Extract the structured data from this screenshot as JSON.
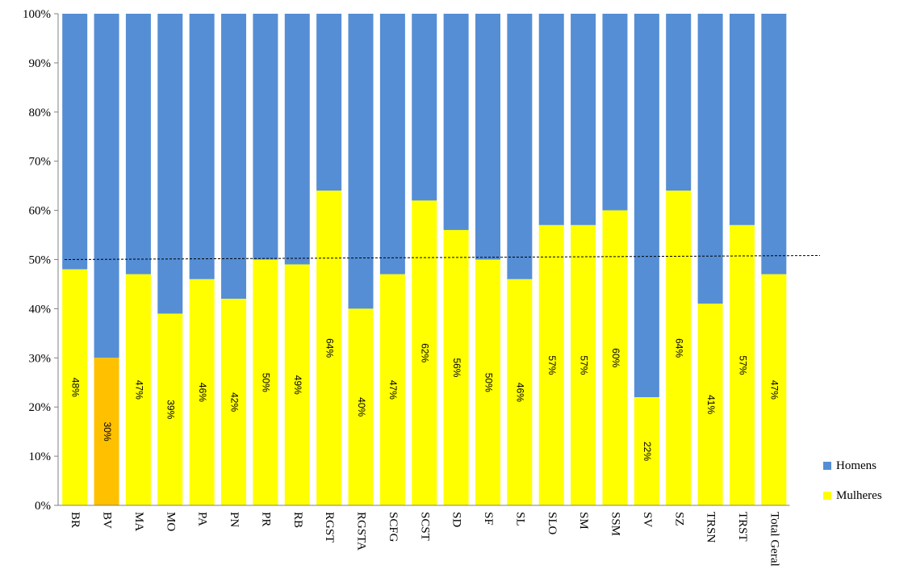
{
  "chart_data": {
    "type": "bar",
    "stacked": true,
    "normalized_percent": true,
    "categories": [
      "BR",
      "BV",
      "MA",
      "MO",
      "PA",
      "PN",
      "PR",
      "RB",
      "RGST",
      "RGSTA",
      "SCFG",
      "SCST",
      "SD",
      "SF",
      "SL",
      "SLO",
      "SM",
      "SSM",
      "SV",
      "SZ",
      "TRSN",
      "TRST",
      "Total Geral"
    ],
    "series": [
      {
        "name": "Mulheres",
        "color": "#ffff00",
        "values": [
          48,
          30,
          47,
          39,
          46,
          42,
          50,
          49,
          64,
          40,
          47,
          62,
          56,
          50,
          46,
          57,
          57,
          60,
          22,
          64,
          41,
          57,
          47
        ],
        "labels": [
          "48%",
          "30%",
          "47%",
          "39%",
          "46%",
          "42%",
          "50%",
          "49%",
          "64%",
          "40%",
          "47%",
          "62%",
          "56%",
          "50%",
          "46%",
          "57%",
          "57%",
          "60%",
          "22%",
          "64%",
          "41%",
          "57%",
          "47%"
        ]
      },
      {
        "name": "Homens",
        "color": "#558ed5",
        "values": [
          52,
          70,
          53,
          61,
          54,
          58,
          50,
          51,
          36,
          60,
          53,
          38,
          44,
          50,
          54,
          43,
          43,
          40,
          78,
          36,
          59,
          43,
          53
        ]
      }
    ],
    "highlight": {
      "category": "BV",
      "color": "#ffc000"
    },
    "reference_line": {
      "value": 50,
      "style": "dashed"
    },
    "y_ticks": [
      "0%",
      "10%",
      "20%",
      "30%",
      "40%",
      "50%",
      "60%",
      "70%",
      "80%",
      "90%",
      "100%"
    ],
    "ylim": [
      0,
      100
    ],
    "grid": false,
    "legend_position": "right",
    "title": "",
    "xlabel": "",
    "ylabel": ""
  },
  "legend": {
    "homens_label": "Homens",
    "homens_color": "#558ed5",
    "mulheres_label": "Mulheres",
    "mulheres_color": "#ffff00"
  }
}
